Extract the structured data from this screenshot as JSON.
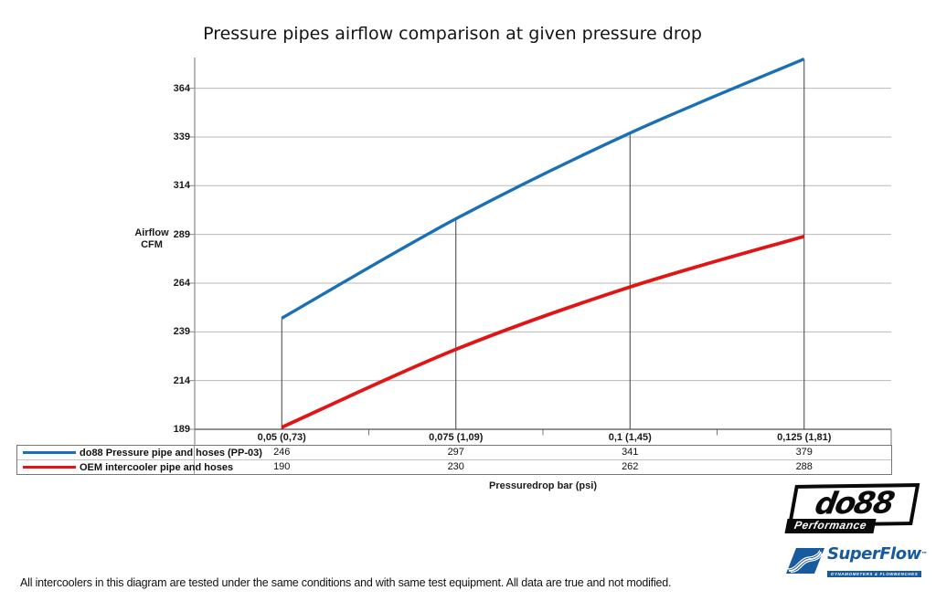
{
  "title": "Pressure pipes airflow comparison at given pressure drop",
  "chart_data": {
    "type": "line",
    "title": "Pressure pipes airflow comparison at given pressure drop",
    "categories": [
      "0,05 (0,73)",
      "0,075 (1,09)",
      "0,1 (1,45)",
      "0,125 (1,81)"
    ],
    "series": [
      {
        "name": "do88 Pressure pipe and hoses (PP-03)",
        "color": "#1b6fb5",
        "values": [
          246,
          297,
          341,
          379
        ]
      },
      {
        "name": "OEM intercooler pipe and hoses",
        "color": "#e01515",
        "values": [
          190,
          230,
          262,
          288
        ]
      }
    ],
    "ylabel": "Airflow CFM",
    "ylabel_line1": "Airflow",
    "ylabel_line2": "CFM",
    "xlabel": "Pressuredrop bar (psi)",
    "yticks": [
      364,
      339,
      314,
      289,
      264,
      239,
      214,
      189
    ],
    "ylim": [
      189,
      389
    ],
    "grid": true,
    "smooth_lines": true,
    "drop_lines": true,
    "legend_position": "bottom-table",
    "colors": {
      "gridline": "#b9b9b9",
      "axis": "#8a8a8a",
      "baseline": "#4f4f4f",
      "dropline": "#3f3f3f"
    }
  },
  "footer": {
    "disclaimer": "All intercoolers in this diagram are tested under the same conditions and with same test equipment. All data are true and not modified."
  },
  "logos": {
    "do88": {
      "name": "do88",
      "tagline": "Performance"
    },
    "superflow": {
      "name": "SuperFlow",
      "tm": "™",
      "tagline": "DYNAMOMETERS & FLOWBENCHES",
      "color": "#185a9e"
    }
  }
}
